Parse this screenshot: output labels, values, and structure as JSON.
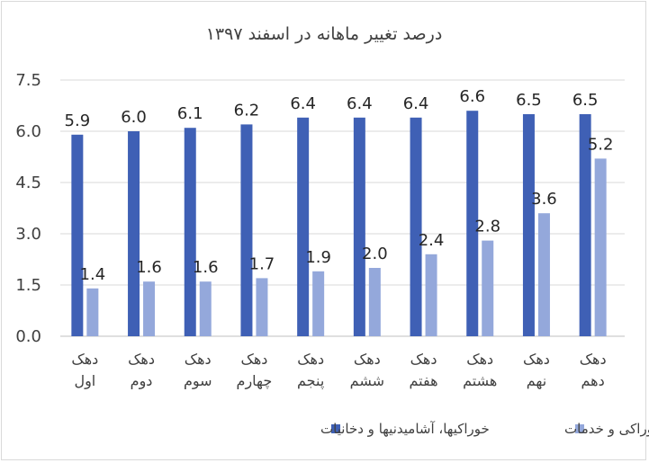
{
  "chart_data": {
    "type": "bar",
    "title": "درصد تغییر ماهانه در اسفند ۱۳۹۷",
    "categories": [
      [
        "دهک",
        "اول"
      ],
      [
        "دهک",
        "دوم"
      ],
      [
        "دهک",
        "سوم"
      ],
      [
        "دهک",
        "چهارم"
      ],
      [
        "دهک",
        "پنجم"
      ],
      [
        "دهک",
        "ششم"
      ],
      [
        "دهک",
        "هفتم"
      ],
      [
        "دهک",
        "هشتم"
      ],
      [
        "دهک",
        "نهم"
      ],
      [
        "دهک",
        "دهم"
      ]
    ],
    "series": [
      {
        "name": "خوراکیها، آشامیدنیها و دخانیات",
        "color": "#3f60b5",
        "values": [
          5.9,
          6.0,
          6.1,
          6.2,
          6.4,
          6.4,
          6.4,
          6.6,
          6.5,
          6.5
        ],
        "labels": [
          "5.9",
          "6.0",
          "6.1",
          "6.2",
          "6.4",
          "6.4",
          "6.4",
          "6.6",
          "6.5",
          "6.5"
        ]
      },
      {
        "name": "کالاهای غیر خوراکی و خدمات",
        "color": "#94a8db",
        "values": [
          1.4,
          1.6,
          1.6,
          1.7,
          1.9,
          2.0,
          2.4,
          2.8,
          3.6,
          5.2
        ],
        "labels": [
          "1.4",
          "1.6",
          "1.6",
          "1.7",
          "1.9",
          "2.0",
          "2.4",
          "2.8",
          "3.6",
          "5.2"
        ]
      }
    ],
    "ylim": [
      0,
      7.5
    ],
    "yticks": [
      "0.0",
      "1.5",
      "3.0",
      "4.5",
      "6.0",
      "7.5"
    ],
    "grid": true,
    "legend": "bottom"
  }
}
